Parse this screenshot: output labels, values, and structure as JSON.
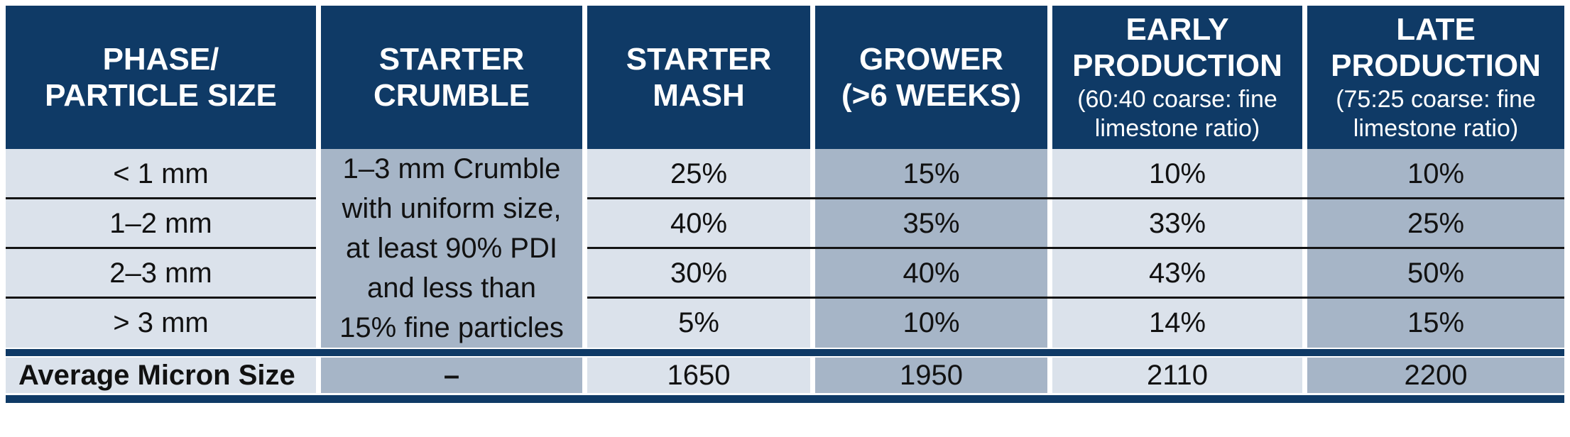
{
  "chart_data": {
    "type": "table",
    "columns": {
      "phase": "PHASE/\nPARTICLE SIZE",
      "starter_crumble": "STARTER\nCRUMBLE",
      "starter_mash": "STARTER\nMASH",
      "grower": "GROWER\n(>6 WEEKS)",
      "early_production": "EARLY\nPRODUCTION",
      "early_production_sub": "(60:40 coarse: fine\nlimestone ratio)",
      "late_production": "LATE\nPRODUCTION",
      "late_production_sub": "(75:25 coarse: fine\nlimestone ratio)"
    },
    "starter_crumble_note": "1–3 mm Crumble\nwith uniform size,\nat least 90% PDI\nand less than\n15% fine particles",
    "rows": [
      {
        "particle_size": "< 1 mm",
        "starter_mash": "25%",
        "grower": "15%",
        "early_production": "10%",
        "late_production": "10%"
      },
      {
        "particle_size": "1–2 mm",
        "starter_mash": "40%",
        "grower": "35%",
        "early_production": "33%",
        "late_production": "25%"
      },
      {
        "particle_size": "2–3 mm",
        "starter_mash": "30%",
        "grower": "40%",
        "early_production": "43%",
        "late_production": "50%"
      },
      {
        "particle_size": "> 3 mm",
        "starter_mash": "5%",
        "grower": "10%",
        "early_production": "14%",
        "late_production": "15%"
      }
    ],
    "footer": {
      "label": "Average Micron Size",
      "starter_crumble": "–",
      "starter_mash": "1650",
      "grower": "1950",
      "early_production": "2110",
      "late_production": "2200"
    }
  },
  "colors": {
    "header_navy": "#0F3A66",
    "light_cell": "#DBE2EB",
    "dark_cell": "#A6B5C7",
    "row_line": "#141414"
  }
}
